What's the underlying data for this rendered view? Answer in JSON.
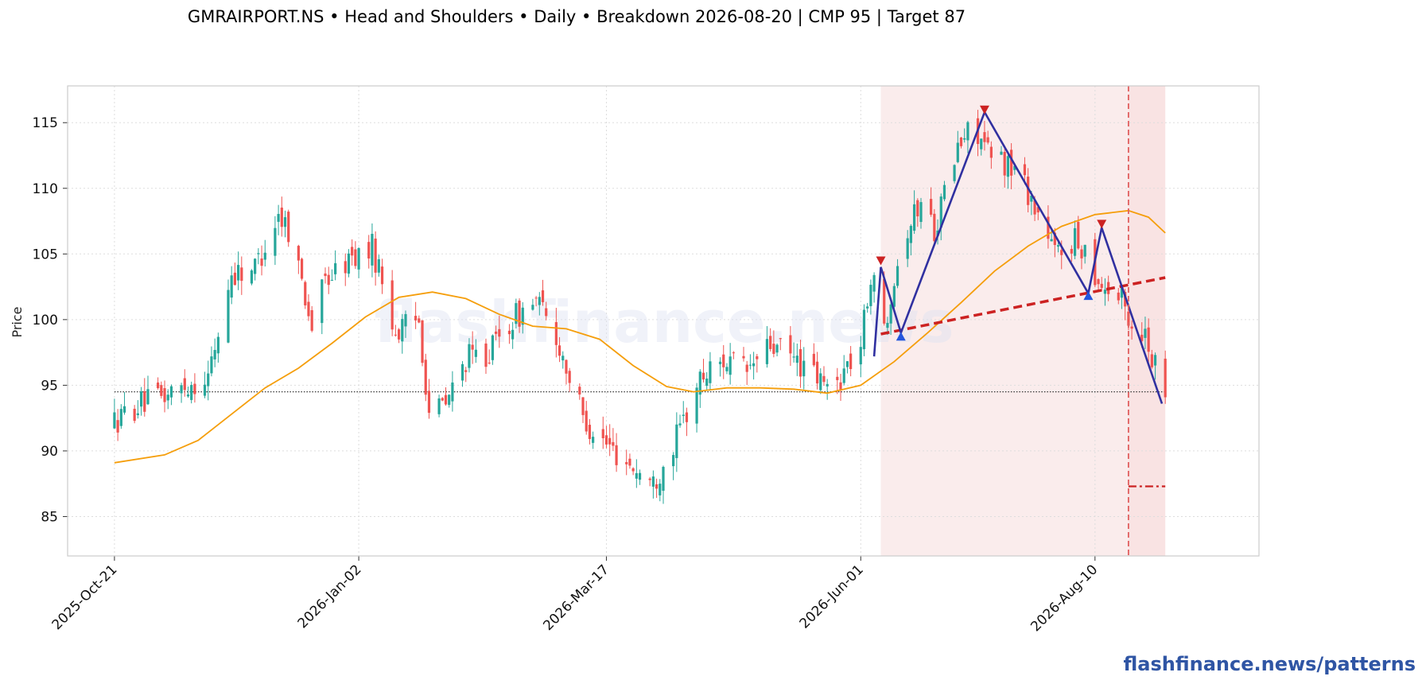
{
  "title": "GMRAIRPORT.NS  •  Head and Shoulders  •  Daily  •  Breakdown 2026-08-20  |  CMP 95  |  Target 87",
  "watermark": "flashfinance.news",
  "footer_brand": "flashfinance.news/patterns",
  "colors": {
    "up": "#26a69a",
    "down": "#ef5350",
    "ma": "#f59e0b",
    "pattern_line": "#3030a0",
    "neckline": "#cc2222",
    "shade": "#f5d5d5",
    "peak_marker": "#cc2222",
    "trough_marker": "#2255dd",
    "cmp_line": "#333333",
    "brand": "#2f55a4"
  },
  "chart_data": {
    "type": "candlestick",
    "title": "GMRAIRPORT.NS  •  Head and Shoulders  •  Daily  •  Breakdown 2026-08-20  |  CMP 95  |  Target 87",
    "ylabel": "Price",
    "xlabel": "",
    "ylim": [
      82,
      117.8
    ],
    "yticks": [
      85,
      90,
      95,
      100,
      105,
      110,
      115
    ],
    "x_range": [
      "2025-10-07",
      "2026-09-28"
    ],
    "xticks": [
      {
        "date": "2025-10-21",
        "label": "2025-Oct-21"
      },
      {
        "date": "2026-01-02",
        "label": "2026-Jan-02"
      },
      {
        "date": "2026-03-17",
        "label": "2026-Mar-17"
      },
      {
        "date": "2026-06-01",
        "label": "2026-Jun-01"
      },
      {
        "date": "2026-08-10",
        "label": "2026-Aug-10"
      }
    ],
    "grid": true,
    "anchors": [
      [
        "2025-10-21",
        92.2
      ],
      [
        "2025-10-28",
        93.5
      ],
      [
        "2025-11-04",
        94.0
      ],
      [
        "2025-11-11",
        95.0
      ],
      [
        "2025-11-18",
        95.6
      ],
      [
        "2025-11-25",
        103.5
      ],
      [
        "2025-12-02",
        104.0
      ],
      [
        "2025-12-09",
        108.0
      ],
      [
        "2025-12-12",
        107.0
      ],
      [
        "2025-12-16",
        103.0
      ],
      [
        "2025-12-19",
        99.5
      ],
      [
        "2025-12-23",
        103.0
      ],
      [
        "2025-12-30",
        104.5
      ],
      [
        "2026-01-06",
        105.5
      ],
      [
        "2026-01-09",
        103.0
      ],
      [
        "2026-01-13",
        99.0
      ],
      [
        "2026-01-20",
        100.0
      ],
      [
        "2026-01-23",
        93.0
      ],
      [
        "2026-01-28",
        93.5
      ],
      [
        "2026-02-03",
        97.0
      ],
      [
        "2026-02-10",
        97.5
      ],
      [
        "2026-02-17",
        100.0
      ],
      [
        "2026-02-24",
        101.5
      ],
      [
        "2026-03-03",
        98.0
      ],
      [
        "2026-03-10",
        92.5
      ],
      [
        "2026-03-17",
        90.5
      ],
      [
        "2026-03-24",
        89.0
      ],
      [
        "2026-03-31",
        87.5
      ],
      [
        "2026-04-07",
        91.0
      ],
      [
        "2026-04-14",
        95.5
      ],
      [
        "2026-04-21",
        97.0
      ],
      [
        "2026-04-28",
        96.0
      ],
      [
        "2026-05-05",
        98.0
      ],
      [
        "2026-05-12",
        97.0
      ],
      [
        "2026-05-19",
        95.5
      ],
      [
        "2026-05-23",
        94.5
      ],
      [
        "2026-05-28",
        96.5
      ],
      [
        "2026-06-01",
        98.0
      ],
      [
        "2026-06-04",
        103.5
      ],
      [
        "2026-06-08",
        99.5
      ],
      [
        "2026-06-11",
        103.5
      ],
      [
        "2026-06-15",
        107.0
      ],
      [
        "2026-06-19",
        109.0
      ],
      [
        "2026-06-23",
        107.0
      ],
      [
        "2026-06-30",
        113.0
      ],
      [
        "2026-07-05",
        115.0
      ],
      [
        "2026-07-09",
        112.5
      ],
      [
        "2026-07-14",
        112.0
      ],
      [
        "2026-07-19",
        111.0
      ],
      [
        "2026-07-24",
        108.0
      ],
      [
        "2026-07-29",
        105.0
      ],
      [
        "2026-08-03",
        106.0
      ],
      [
        "2026-08-07",
        105.5
      ],
      [
        "2026-08-11",
        103.0
      ],
      [
        "2026-08-15",
        102.0
      ],
      [
        "2026-08-18",
        101.5
      ],
      [
        "2026-08-21",
        99.5
      ],
      [
        "2026-08-25",
        99.0
      ],
      [
        "2026-08-28",
        96.5
      ],
      [
        "2026-08-31",
        95.0
      ]
    ],
    "moving_average": [
      [
        "2025-10-21",
        89.1
      ],
      [
        "2025-11-05",
        89.7
      ],
      [
        "2025-11-15",
        90.8
      ],
      [
        "2025-11-25",
        92.8
      ],
      [
        "2025-12-05",
        94.8
      ],
      [
        "2025-12-15",
        96.3
      ],
      [
        "2025-12-25",
        98.2
      ],
      [
        "2026-01-04",
        100.2
      ],
      [
        "2026-01-14",
        101.7
      ],
      [
        "2026-01-24",
        102.1
      ],
      [
        "2026-02-03",
        101.6
      ],
      [
        "2026-02-13",
        100.4
      ],
      [
        "2026-02-23",
        99.5
      ],
      [
        "2026-03-05",
        99.3
      ],
      [
        "2026-03-15",
        98.5
      ],
      [
        "2026-03-25",
        96.5
      ],
      [
        "2026-04-04",
        94.9
      ],
      [
        "2026-04-12",
        94.5
      ],
      [
        "2026-04-22",
        94.8
      ],
      [
        "2026-05-02",
        94.8
      ],
      [
        "2026-05-12",
        94.7
      ],
      [
        "2026-05-22",
        94.4
      ],
      [
        "2026-06-01",
        95.0
      ],
      [
        "2026-06-11",
        96.8
      ],
      [
        "2026-06-21",
        99.0
      ],
      [
        "2026-07-01",
        101.3
      ],
      [
        "2026-07-11",
        103.7
      ],
      [
        "2026-07-21",
        105.6
      ],
      [
        "2026-07-31",
        107.1
      ],
      [
        "2026-08-10",
        108.0
      ],
      [
        "2026-08-20",
        108.3
      ],
      [
        "2026-08-26",
        107.8
      ],
      [
        "2026-08-31",
        106.6
      ]
    ],
    "pattern": {
      "shaded_range": [
        "2026-06-07",
        "2026-08-31"
      ],
      "zigzag": [
        [
          "2026-06-05",
          97.2
        ],
        [
          "2026-06-07",
          104.0
        ],
        [
          "2026-06-13",
          99.0
        ],
        [
          "2026-07-08",
          115.8
        ],
        [
          "2026-08-08",
          102.0
        ],
        [
          "2026-08-12",
          107.0
        ],
        [
          "2026-08-30",
          93.6
        ]
      ],
      "peaks": [
        [
          "2026-06-07",
          104.5
        ],
        [
          "2026-07-08",
          116.0
        ],
        [
          "2026-08-12",
          107.3
        ]
      ],
      "troughs": [
        [
          "2026-06-13",
          98.7
        ],
        [
          "2026-08-08",
          101.8
        ]
      ],
      "neckline": [
        [
          "2026-06-07",
          98.9
        ],
        [
          "2026-08-31",
          103.2
        ]
      ],
      "breakdown_date": "2026-08-20",
      "target": {
        "value": 87.3,
        "from": "2026-08-20",
        "to": "2026-08-31"
      },
      "cmp": 94.5
    }
  }
}
